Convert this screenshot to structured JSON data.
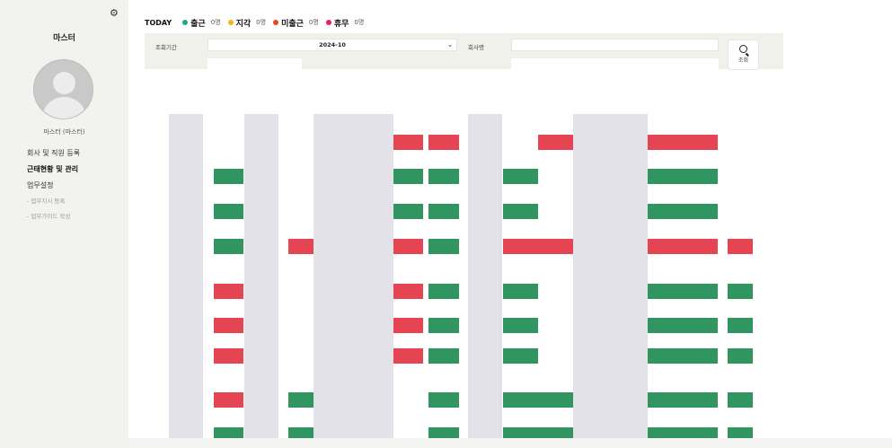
{
  "sidebar": {
    "settings_icon": "gear-icon",
    "company": "마스터",
    "user_name": "마스터 (마스터)",
    "menu": [
      {
        "label": "회사 및 직원 등록",
        "active": false
      },
      {
        "label": "근태현황 및 관리",
        "active": true
      },
      {
        "label": "업무설정",
        "active": false
      }
    ],
    "submenu": [
      {
        "label": "- 업무지시 등록"
      },
      {
        "label": "- 업무가이드 작성"
      }
    ]
  },
  "today": {
    "label": "TODAY",
    "stats": [
      {
        "name": "출근",
        "count": "0명",
        "color": "#1aa889"
      },
      {
        "name": "지각",
        "count": "0명",
        "color": "#f3b51b"
      },
      {
        "name": "미출근",
        "count": "0명",
        "color": "#e8481c"
      },
      {
        "name": "휴무",
        "count": "0명",
        "color": "#e91e63"
      }
    ]
  },
  "filter": {
    "period_label": "조회기간",
    "period_value": "2024-10",
    "company_label": "회사명",
    "company_value": "",
    "search_label": "조회"
  },
  "colors": {
    "green": "#1a8a4f",
    "red": "#e2303f",
    "gray": "#e2e2e8"
  }
}
